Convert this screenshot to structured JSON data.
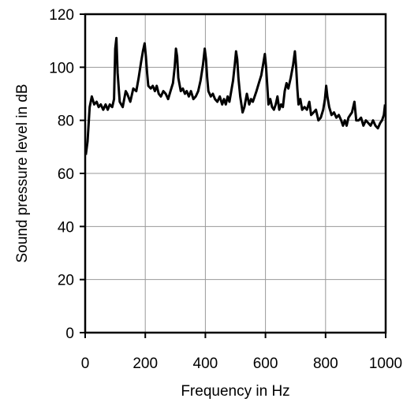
{
  "chart_data": {
    "type": "line",
    "title": "",
    "xlabel": "Frequency in Hz",
    "ylabel": "Sound pressure level in dB",
    "xlim": [
      0,
      1000
    ],
    "ylim": [
      0,
      120
    ],
    "xticks": [
      0,
      200,
      400,
      600,
      800,
      1000
    ],
    "yticks": [
      0,
      20,
      40,
      60,
      80,
      100,
      120
    ],
    "xtick_labels": [
      "0",
      "200",
      "400",
      "600",
      "800",
      "1000"
    ],
    "ytick_labels": [
      "0",
      "20",
      "40",
      "60",
      "80",
      "100",
      "120"
    ],
    "grid": true,
    "line_color": "#000000",
    "series": [
      {
        "x": [
          2,
          8,
          15,
          22,
          30,
          38,
          45,
          52,
          60,
          68,
          75,
          82,
          90,
          96,
          100,
          104,
          108,
          115,
          125,
          135,
          140,
          150,
          160,
          170,
          178,
          186,
          192,
          198,
          202,
          206,
          210,
          218,
          225,
          232,
          238,
          245,
          252,
          260,
          268,
          276,
          284,
          292,
          298,
          302,
          306,
          310,
          318,
          325,
          332,
          338,
          345,
          352,
          360,
          368,
          376,
          384,
          392,
          398,
          402,
          406,
          410,
          418,
          425,
          432,
          440,
          448,
          456,
          462,
          468,
          474,
          480,
          486,
          492,
          498,
          502,
          506,
          510,
          516,
          520,
          524,
          530,
          538,
          546,
          552,
          558,
          564,
          570,
          578,
          586,
          592,
          598,
          602,
          606,
          610,
          616,
          622,
          628,
          634,
          640,
          646,
          652,
          658,
          664,
          670,
          676,
          684,
          692,
          698,
          702,
          706,
          710,
          716,
          722,
          730,
          738,
          746,
          752,
          760,
          768,
          776,
          784,
          792,
          798,
          802,
          806,
          812,
          820,
          828,
          836,
          844,
          852,
          858,
          864,
          870,
          876,
          882,
          888,
          896,
          902,
          910,
          918,
          926,
          934,
          942,
          950,
          958,
          966,
          974,
          982,
          988,
          994,
          998
        ],
        "y": [
          67,
          72,
          85,
          89,
          86,
          87,
          85,
          86,
          84,
          86,
          84,
          86,
          85,
          88,
          107,
          111,
          98,
          87,
          85,
          91,
          90,
          87,
          92,
          91,
          96,
          102,
          106,
          109,
          104,
          98,
          93,
          92,
          93,
          91,
          93,
          90,
          89,
          91,
          90,
          88,
          91,
          94,
          100,
          107,
          104,
          96,
          91,
          92,
          90,
          91,
          89,
          91,
          88,
          89,
          91,
          95,
          101,
          107,
          103,
          96,
          91,
          89,
          90,
          88,
          87,
          89,
          86,
          88,
          86,
          89,
          87,
          91,
          95,
          101,
          106,
          103,
          96,
          89,
          86,
          83,
          85,
          90,
          86,
          88,
          87,
          89,
          91,
          94,
          97,
          101,
          105,
          100,
          93,
          86,
          88,
          85,
          84,
          86,
          89,
          84,
          86,
          85,
          91,
          94,
          92,
          96,
          101,
          106,
          100,
          92,
          86,
          88,
          84,
          85,
          84,
          87,
          82,
          83,
          84,
          80,
          81,
          84,
          88,
          93,
          89,
          85,
          82,
          83,
          81,
          82,
          80,
          78,
          80,
          78,
          81,
          82,
          83,
          87,
          80,
          80,
          81,
          78,
          80,
          79,
          78,
          80,
          78,
          77,
          79,
          80,
          82,
          86
        ]
      }
    ]
  }
}
